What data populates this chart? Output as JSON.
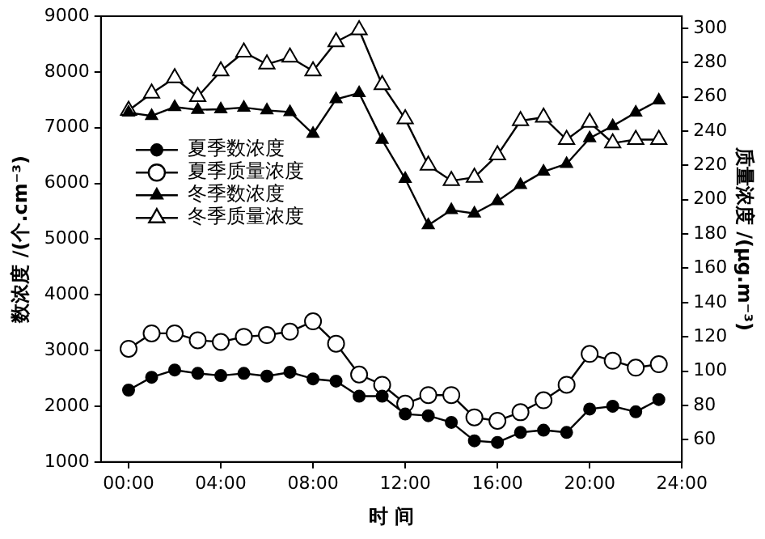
{
  "chart_data": {
    "type": "line",
    "xlabel": "时 间",
    "ylabel": "数浓度 /(个.cm⁻³)",
    "y2label": "质量浓度 /(μg.m⁻³)",
    "x": [
      0,
      1,
      2,
      3,
      4,
      5,
      6,
      7,
      8,
      9,
      10,
      11,
      12,
      13,
      14,
      15,
      16,
      17,
      18,
      19,
      20,
      21,
      22,
      23
    ],
    "xlim": [
      -1.2,
      24
    ],
    "xticks": [
      {
        "value": 0,
        "label": "00:00"
      },
      {
        "value": 4,
        "label": "04:00"
      },
      {
        "value": 8,
        "label": "08:00"
      },
      {
        "value": 12,
        "label": "12:00"
      },
      {
        "value": 16,
        "label": "16:00"
      },
      {
        "value": 20,
        "label": "20:00"
      },
      {
        "value": 24,
        "label": "24:00"
      }
    ],
    "ylim": [
      1000,
      9000
    ],
    "yticks": [
      1000,
      2000,
      3000,
      4000,
      5000,
      6000,
      7000,
      8000,
      9000
    ],
    "y2lim": [
      47,
      307
    ],
    "y2ticks": [
      60,
      80,
      100,
      120,
      140,
      160,
      180,
      200,
      220,
      240,
      260,
      280,
      300
    ],
    "grid": false,
    "legend": "left",
    "line_style": "solid",
    "series": [
      {
        "name": "夏季数浓度",
        "color": "#000000",
        "marker": "circle",
        "values": [
          2290,
          2520,
          2650,
          2590,
          2550,
          2590,
          2540,
          2610,
          2490,
          2450,
          2180,
          2180,
          1860,
          1830,
          1710,
          1380,
          1350,
          1530,
          1570,
          1530,
          1950,
          2000,
          1900,
          2120
        ]
      },
      {
        "name": "夏季质量浓度",
        "color": "#000000",
        "marker": "circle",
        "axis": "y2",
        "values": [
          113,
          122,
          122,
          118,
          117,
          120,
          121,
          123,
          129,
          116,
          98,
          92,
          81,
          86,
          86,
          73,
          71,
          76,
          83,
          92,
          110,
          106,
          102,
          104
        ]
      },
      {
        "name": "冬季数浓度",
        "color": "#000000",
        "marker": "triangle",
        "values": [
          7270,
          7210,
          7370,
          7320,
          7330,
          7360,
          7310,
          7280,
          6890,
          7510,
          7620,
          6780,
          6080,
          5250,
          5520,
          5460,
          5680,
          5970,
          6210,
          6350,
          6810,
          7030,
          7270,
          7490
        ]
      },
      {
        "name": "冬季质量浓度",
        "color": "#000000",
        "marker": "triangle",
        "axis": "y2",
        "values": [
          252,
          262,
          271,
          260,
          275,
          286,
          279,
          283,
          275,
          292,
          299,
          267,
          247,
          220,
          211,
          213,
          226,
          246,
          248,
          235,
          245,
          233,
          235,
          235
        ]
      }
    ]
  }
}
